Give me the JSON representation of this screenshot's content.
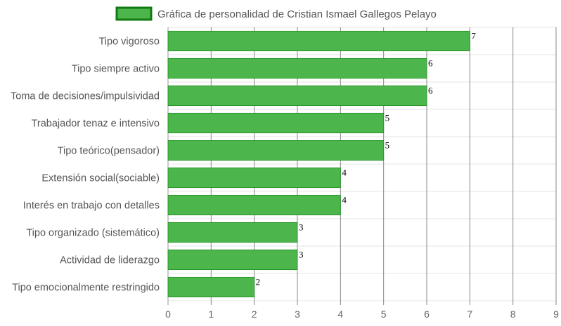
{
  "chart_data": {
    "type": "bar",
    "orientation": "horizontal",
    "categories": [
      "Tipo vigoroso",
      "Tipo siempre activo",
      "Toma de decisiones/impulsividad",
      "Trabajador tenaz e intensivo",
      "Tipo teórico(pensador)",
      "Extensión social(sociable)",
      "Interés en trabajo con detalles",
      "Tipo organizado (sistemático)",
      "Actividad de liderazgo",
      "Tipo emocionalmente restringido"
    ],
    "series": [
      {
        "name": "Gráfica de personalidad de Cristian Ismael Gallegos Pelayo",
        "values": [
          7,
          6,
          6,
          5,
          5,
          4,
          4,
          3,
          3,
          2
        ]
      }
    ],
    "x_ticks": [
      "0",
      "1",
      "2",
      "3",
      "4",
      "5",
      "6",
      "7",
      "8",
      "9"
    ],
    "xlim": [
      0,
      9
    ],
    "grid": true,
    "legend_position": "top",
    "colors": {
      "bar_fill": "#4cb54c",
      "bar_border": "#2a962a",
      "legend_fill": "#4cb54c",
      "legend_border": "#117a11",
      "grid_minor": "#e6e6e6",
      "grid_major": "#888888"
    }
  }
}
